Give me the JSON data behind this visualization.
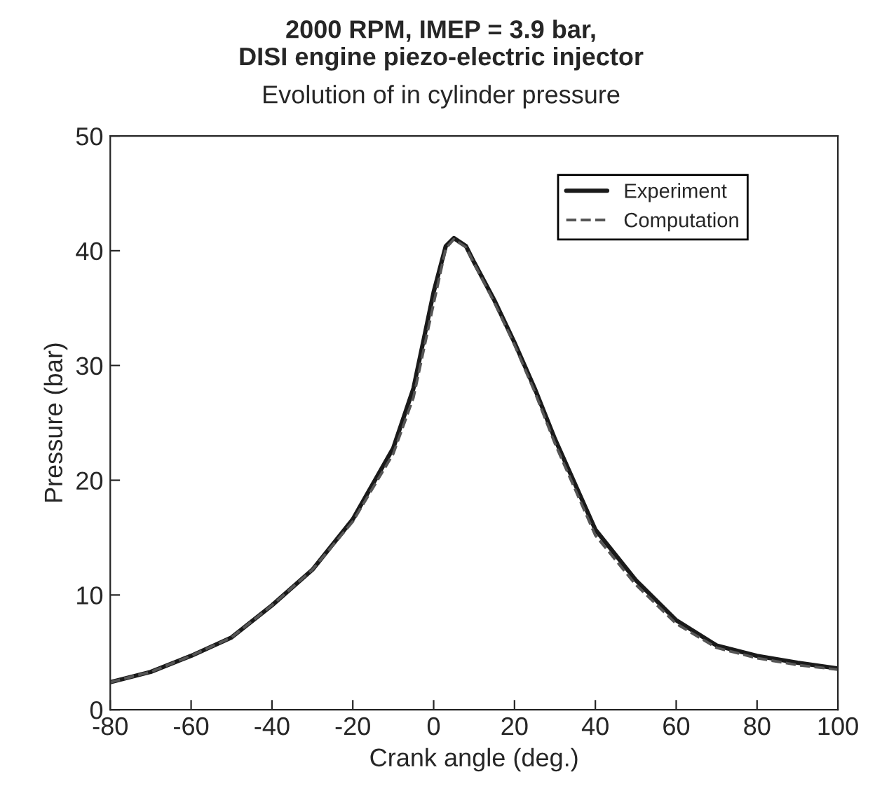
{
  "chart_data": {
    "type": "line",
    "title": "2000 RPM, IMEP = 3.9 bar,\nDISI engine piezo-electric injector",
    "subtitle": "Evolution of in cylinder pressure",
    "xlabel": "Crank angle (deg.)",
    "ylabel": "Pressure (bar)",
    "xlim": [
      -80,
      100
    ],
    "ylim": [
      0,
      50
    ],
    "xticks": [
      -80,
      -60,
      -40,
      -20,
      0,
      20,
      40,
      60,
      80,
      100
    ],
    "yticks": [
      0,
      10,
      20,
      30,
      40,
      50
    ],
    "grid": false,
    "legend": "top right",
    "series": [
      {
        "name": "Experiment",
        "color": "#1a1a1a",
        "line_style": "solid",
        "x": [
          -80,
          -70,
          -60,
          -50,
          -40,
          -30,
          -20,
          -10,
          -5,
          0,
          3,
          5,
          8,
          10,
          15,
          20,
          25,
          30,
          40,
          50,
          60,
          70,
          80,
          90,
          100
        ],
        "values": [
          2.4,
          3.3,
          4.7,
          6.3,
          9.1,
          12.2,
          16.6,
          22.8,
          28.0,
          36.4,
          40.4,
          41.1,
          40.4,
          39.0,
          35.7,
          32.0,
          28.0,
          23.6,
          15.7,
          11.3,
          7.8,
          5.6,
          4.7,
          4.1,
          3.6
        ]
      },
      {
        "name": "Computation",
        "color": "#555555",
        "line_style": "dashed",
        "x": [
          -80,
          -70,
          -60,
          -50,
          -40,
          -30,
          -20,
          -10,
          -5,
          0,
          3,
          5,
          8,
          10,
          15,
          20,
          25,
          30,
          40,
          50,
          60,
          70,
          80,
          90,
          100
        ],
        "values": [
          2.4,
          3.3,
          4.7,
          6.3,
          9.1,
          12.2,
          16.4,
          22.3,
          27.2,
          35.4,
          40.2,
          41.0,
          40.3,
          38.9,
          35.5,
          31.8,
          27.7,
          23.2,
          15.2,
          10.9,
          7.5,
          5.4,
          4.5,
          3.9,
          3.5
        ]
      }
    ]
  }
}
